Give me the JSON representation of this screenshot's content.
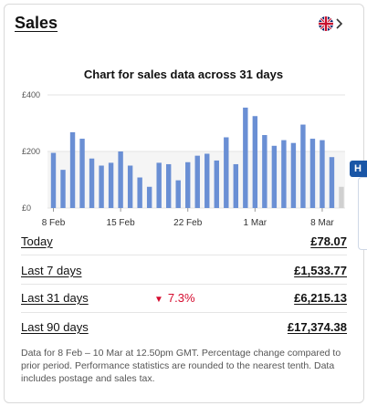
{
  "header": {
    "title": "Sales",
    "flag_icon": "uk-flag-icon",
    "chevron_icon": "chevron-right-icon"
  },
  "chart_data": {
    "type": "bar",
    "title": "Chart for sales data across 31 days",
    "y_ticks": [
      "£400",
      "£200",
      "£0"
    ],
    "ylim": [
      0,
      400
    ],
    "x_ticks": [
      "8 Feb",
      "15 Feb",
      "22 Feb",
      "1 Mar",
      "8 Mar"
    ],
    "values": [
      195,
      135,
      268,
      245,
      175,
      150,
      160,
      200,
      150,
      108,
      75,
      160,
      155,
      98,
      162,
      185,
      192,
      168,
      250,
      155,
      355,
      325,
      258,
      220,
      240,
      230,
      295,
      245,
      240,
      180,
      75
    ],
    "bar_color": "#6a8fd4",
    "last_bar_color": "#d0d0d0",
    "highlight_band": [
      0,
      200
    ],
    "grid": true
  },
  "tab": {
    "label": "H"
  },
  "stats": [
    {
      "label": "Today",
      "value": "£78.07"
    },
    {
      "label": "Last 7 days",
      "value": "£1,533.77"
    },
    {
      "label": "Last 31 days",
      "change": "7.3%",
      "value": "£6,215.13"
    },
    {
      "label": "Last 90 days",
      "value": "£17,374.38"
    }
  ],
  "footnote": "Data for 8 Feb – 10 Mar at 12.50pm GMT. Percentage change compared to prior period. Performance statistics are rounded to the nearest tenth. Data includes postage and sales tax."
}
